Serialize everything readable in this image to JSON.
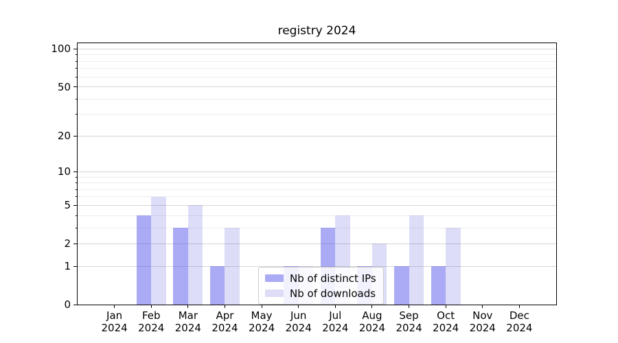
{
  "chart_data": {
    "type": "bar",
    "title": "registry 2024",
    "year": "2024",
    "categories": [
      "Jan",
      "Feb",
      "Mar",
      "Apr",
      "May",
      "Jun",
      "Jul",
      "Aug",
      "Sep",
      "Oct",
      "Nov",
      "Dec"
    ],
    "series": [
      {
        "name": "Nb of distinct IPs",
        "color": "rgba(85,85,235,0.5)",
        "values": [
          0,
          4,
          3,
          1,
          0,
          1,
          3,
          1,
          1,
          1,
          0,
          0
        ]
      },
      {
        "name": "Nb of downloads",
        "color": "rgba(85,85,220,0.2)",
        "values": [
          0,
          6,
          5,
          3,
          0,
          1,
          4,
          2,
          4,
          3,
          0,
          0
        ]
      }
    ],
    "yscale": "log1p",
    "ylim": [
      0,
      111
    ],
    "y_tick_labels": [
      100,
      50,
      20,
      10,
      5,
      2,
      1,
      0
    ],
    "y_major_gridlines": [
      1,
      2,
      5,
      10,
      20,
      50,
      100
    ],
    "y_minor_gridlines": [
      3,
      4,
      6,
      7,
      8,
      9,
      30,
      40,
      60,
      70,
      80,
      90
    ],
    "grid": true,
    "legend_position": "lower center",
    "colors": {
      "major_grid": "#d4d4d4",
      "minor_grid": "#ededed",
      "spine": "#000000",
      "text": "#000000",
      "legend_border": "#cccccc"
    }
  }
}
